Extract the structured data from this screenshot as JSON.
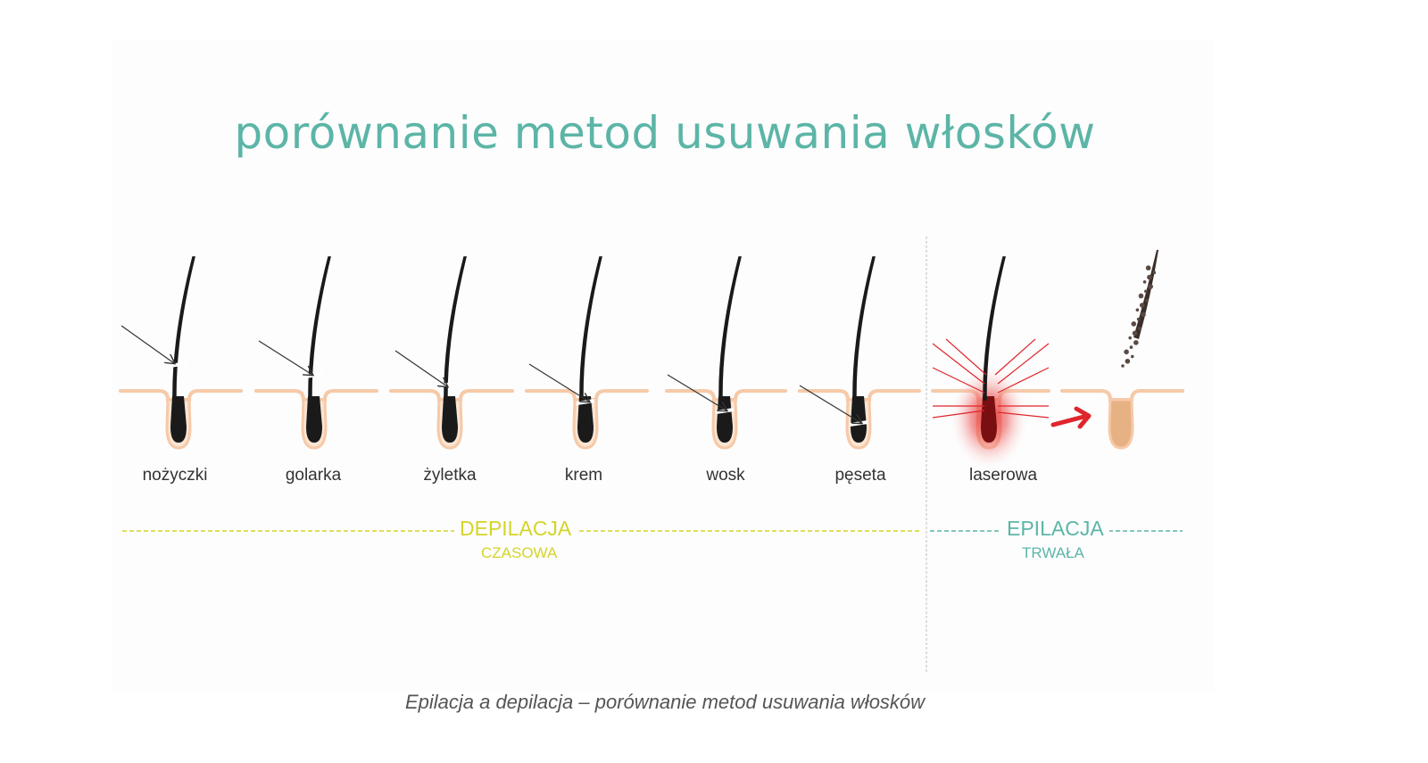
{
  "title": "porównanie metod usuwania włosków",
  "methods": [
    {
      "label": "nożyczki",
      "icon": "hair-cut-above-skin-icon"
    },
    {
      "label": "golarka",
      "icon": "hair-shaved-at-skin-icon"
    },
    {
      "label": "żyletka",
      "icon": "hair-razor-at-skin-icon"
    },
    {
      "label": "krem",
      "icon": "hair-dissolved-below-skin-icon"
    },
    {
      "label": "wosk",
      "icon": "hair-pulled-from-root-icon"
    },
    {
      "label": "pęseta",
      "icon": "hair-tweezed-from-bulb-icon"
    },
    {
      "label": "laserowa",
      "icon": "hair-laser-destroyed-icon"
    }
  ],
  "groups": {
    "temporary": {
      "label": "DEPILACJA",
      "sub": "CZASOWA",
      "color": "#d4d42a"
    },
    "permanent": {
      "label": "EPILACJA",
      "sub": "TRWAŁA",
      "color": "#5cb5a7"
    }
  },
  "colors": {
    "title": "#5cb5a7",
    "skin": "#f6c9a8",
    "hair": "#1a1a1a",
    "laser": "#e0252c"
  },
  "caption": "Epilacja a depilacja – porównanie metod usuwania włosków"
}
